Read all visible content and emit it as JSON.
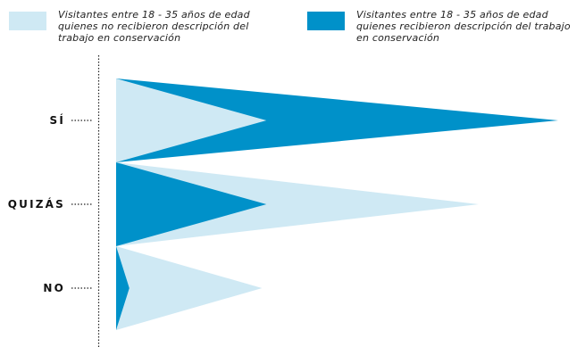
{
  "chart_data": {
    "type": "area",
    "orientation": "horizontal",
    "categories": [
      "SÍ",
      "QUIZÁS",
      "NO"
    ],
    "series": [
      {
        "name": "Visitantes entre 18 - 35 años de edad quienes no recibieron descripción del trabajo en conservación",
        "color": "#cfe9f4",
        "values": [
          34,
          82,
          33
        ]
      },
      {
        "name": "Visitantes entre 18 - 35 años de edad quienes recibieron descripción del trabajo en conservación",
        "color": "#0091c9",
        "values": [
          100,
          34,
          3
        ]
      }
    ],
    "xlim": [
      0,
      100
    ],
    "xlabel": "",
    "ylabel": "",
    "title": ""
  },
  "legend": [
    {
      "label": "Visitantes entre 18 - 35 años de edad quienes no recibieron descripción del trabajo en conservación",
      "color": "#cfe9f4"
    },
    {
      "label": "Visitantes entre 18 - 35 años de edad quienes recibieron descripción del trabajo en conservación",
      "color": "#0091c9"
    }
  ]
}
